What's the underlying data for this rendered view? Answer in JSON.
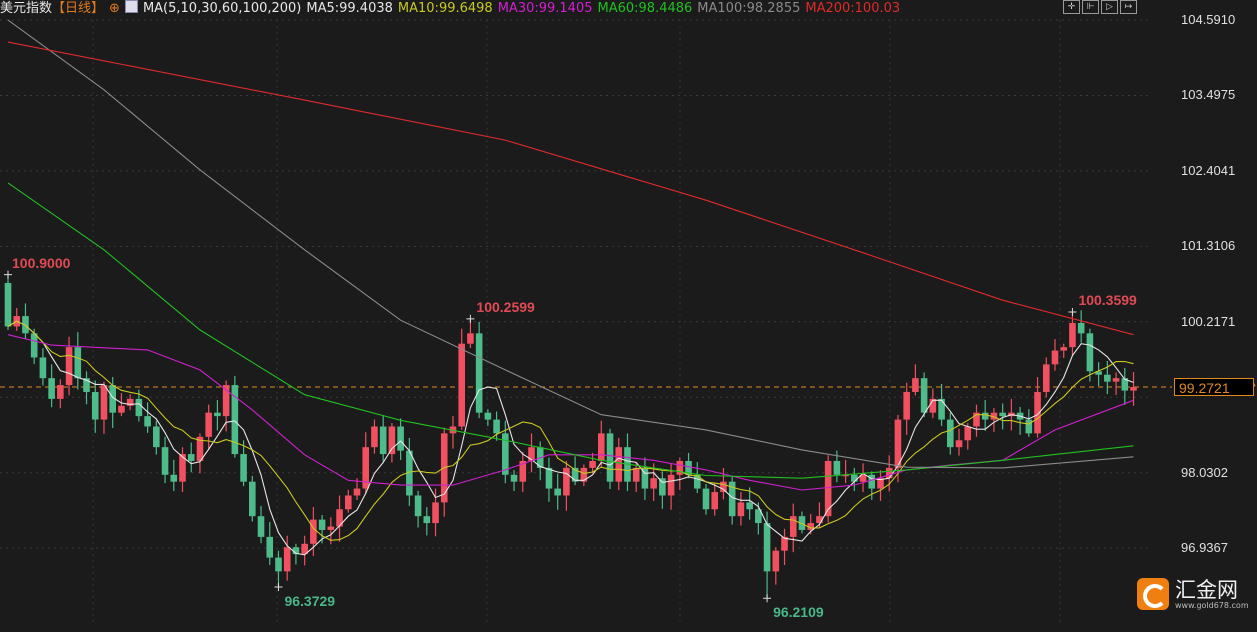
{
  "header": {
    "title": "美元指数",
    "period": "【日线】",
    "ma_label": "MA(5,10,30,60,100,200)",
    "ma_values": [
      {
        "text": "MA5:99.4038",
        "color": "#e6e6e6"
      },
      {
        "text": "MA10:99.6498",
        "color": "#c8c820"
      },
      {
        "text": "MA30:99.1405",
        "color": "#d020d0"
      },
      {
        "text": "MA60:98.4486",
        "color": "#20c020"
      },
      {
        "text": "MA100:98.2855",
        "color": "#8a8a8a"
      },
      {
        "text": "MA200:100.03",
        "color": "#e02a2a"
      }
    ],
    "tool_icons": [
      "crosshair-icon",
      "zoom-range-icon",
      "play-icon",
      "exit-icon"
    ]
  },
  "logo": {
    "name": "汇金网",
    "url": "www.gold678.com"
  },
  "chart_data": {
    "type": "candlestick",
    "ylim": [
      95.9,
      104.591
    ],
    "y_ticks": [
      "104.5910",
      "103.4975",
      "102.4041",
      "101.3106",
      "100.2171",
      "98.0302",
      "96.9367"
    ],
    "current_price": "99.2721",
    "up_color": "#f0505f",
    "down_color": "#4dbb8a",
    "grid": true,
    "first_open": 100.78,
    "closes": [
      100.15,
      100.3,
      100.05,
      99.7,
      99.4,
      99.1,
      99.3,
      99.85,
      99.4,
      99.2,
      98.8,
      99.3,
      98.9,
      99.0,
      99.1,
      98.85,
      98.7,
      98.4,
      98.0,
      97.9,
      98.3,
      98.2,
      98.55,
      98.9,
      98.85,
      99.3,
      98.3,
      97.9,
      97.4,
      97.1,
      96.8,
      96.6,
      96.95,
      96.85,
      97.0,
      97.35,
      97.2,
      97.25,
      97.5,
      97.7,
      97.8,
      98.4,
      98.7,
      98.3,
      98.7,
      98.35,
      97.7,
      97.4,
      97.3,
      97.6,
      98.6,
      98.7,
      99.9,
      100.05,
      98.9,
      98.8,
      98.6,
      98.0,
      97.9,
      98.2,
      98.4,
      98.1,
      97.8,
      97.7,
      98.1,
      97.9,
      98.1,
      98.2,
      98.6,
      97.9,
      98.4,
      97.9,
      98.1,
      97.8,
      97.95,
      97.7,
      98.0,
      98.2,
      98.0,
      97.8,
      97.5,
      97.75,
      97.9,
      97.4,
      97.6,
      97.5,
      97.3,
      96.6,
      96.9,
      97.1,
      97.4,
      97.2,
      97.3,
      97.4,
      98.2,
      98.0,
      98.0,
      97.9,
      98.0,
      97.8,
      97.95,
      98.1,
      98.8,
      99.2,
      99.4,
      98.9,
      99.1,
      98.8,
      98.4,
      98.5,
      98.7,
      98.9,
      98.8,
      98.9,
      98.85,
      98.9,
      98.8,
      98.6,
      99.2,
      99.6,
      99.8,
      99.85,
      100.2,
      100.05,
      99.5,
      99.45,
      99.35,
      99.4,
      99.22,
      99.2721
    ],
    "extremes": [
      {
        "index": 0,
        "type": "high",
        "value": 100.9,
        "label": "100.9000"
      },
      {
        "index": 53,
        "type": "high",
        "value": 100.2599,
        "label": "100.2599"
      },
      {
        "index": 122,
        "type": "high",
        "value": 100.3599,
        "label": "100.3599"
      },
      {
        "index": 31,
        "type": "low",
        "value": 96.3729,
        "label": "96.3729"
      },
      {
        "index": 87,
        "type": "low",
        "value": 96.2109,
        "label": "96.2109"
      }
    ],
    "moving_averages": [
      {
        "name": "MA5",
        "period": 5,
        "color": "#e6e6e6"
      },
      {
        "name": "MA10",
        "period": 10,
        "color": "#c8c820"
      },
      {
        "name": "MA30",
        "color": "#d020d0",
        "points": [
          [
            0,
            100.03
          ],
          [
            5,
            99.88
          ],
          [
            11,
            99.84
          ],
          [
            16,
            99.81
          ],
          [
            22,
            99.52
          ],
          [
            28,
            98.94
          ],
          [
            34,
            98.29
          ],
          [
            39,
            97.92
          ],
          [
            45,
            97.85
          ],
          [
            51,
            97.85
          ],
          [
            57,
            98.07
          ],
          [
            62,
            98.29
          ],
          [
            68,
            98.29
          ],
          [
            74,
            98.21
          ],
          [
            80,
            98.07
          ],
          [
            85,
            97.92
          ],
          [
            91,
            97.78
          ],
          [
            97,
            97.85
          ],
          [
            103,
            98.07
          ],
          [
            108,
            98.14
          ],
          [
            114,
            98.21
          ],
          [
            120,
            98.65
          ],
          [
            129,
            99.08
          ]
        ]
      },
      {
        "name": "MA60",
        "color": "#20c020",
        "points": [
          [
            0,
            102.23
          ],
          [
            11,
            101.26
          ],
          [
            22,
            100.1
          ],
          [
            34,
            99.16
          ],
          [
            45,
            98.79
          ],
          [
            57,
            98.5
          ],
          [
            68,
            98.21
          ],
          [
            80,
            97.99
          ],
          [
            91,
            97.95
          ],
          [
            103,
            98.07
          ],
          [
            114,
            98.21
          ],
          [
            129,
            98.42
          ]
        ]
      },
      {
        "name": "MA100",
        "color": "#8a8a8a",
        "points": [
          [
            0,
            104.59
          ],
          [
            11,
            103.58
          ],
          [
            22,
            102.42
          ],
          [
            34,
            101.26
          ],
          [
            45,
            100.24
          ],
          [
            57,
            99.52
          ],
          [
            68,
            98.87
          ],
          [
            80,
            98.65
          ],
          [
            91,
            98.36
          ],
          [
            103,
            98.11
          ],
          [
            114,
            98.1
          ],
          [
            129,
            98.26
          ]
        ]
      },
      {
        "name": "MA200",
        "color": "#e02a2a",
        "points": [
          [
            0,
            104.27
          ],
          [
            34,
            103.43
          ],
          [
            57,
            102.85
          ],
          [
            80,
            101.98
          ],
          [
            97,
            101.26
          ],
          [
            114,
            100.53
          ],
          [
            129,
            100.03
          ]
        ]
      }
    ]
  }
}
